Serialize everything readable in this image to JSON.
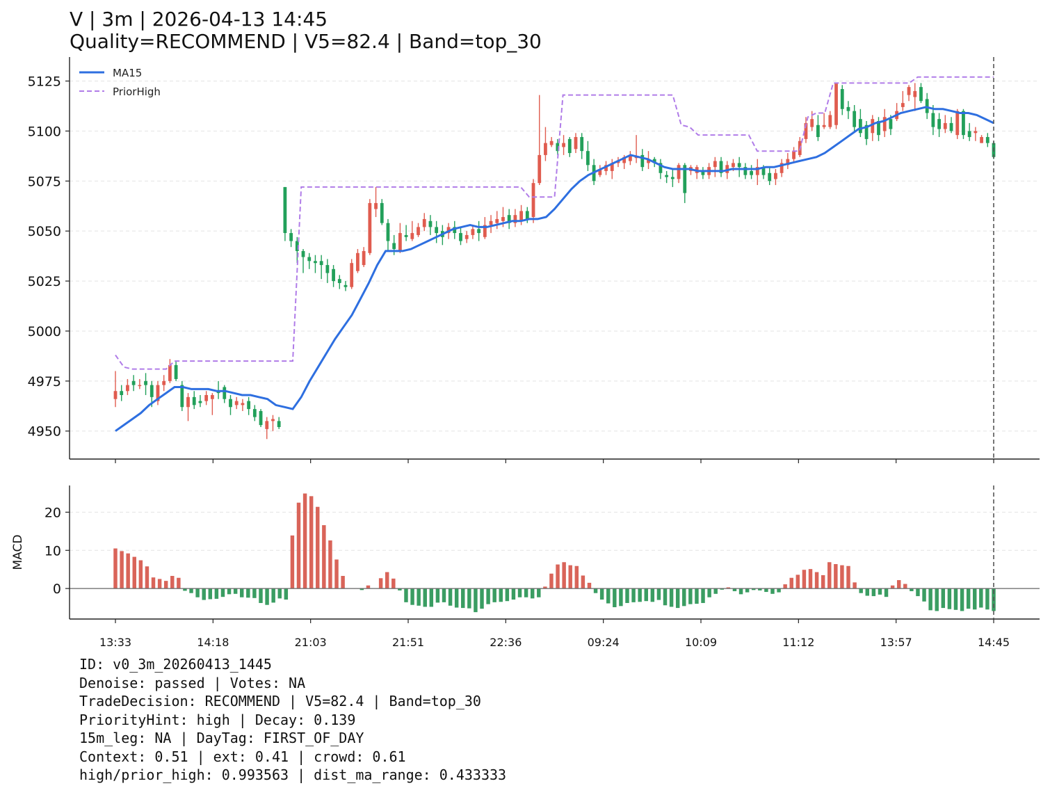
{
  "title": "V | 3m | 2026-04-13 14:45",
  "subtitle": "Quality=RECOMMEND | V5=82.4 | Band=top_30",
  "info_lines": [
    "ID: v0_3m_20260413_1445",
    "Denoise: passed | Votes: NA",
    "TradeDecision: RECOMMEND | V5=82.4 | Band=top_30",
    "PriorityHint: high | Decay: 0.139",
    "15m_leg: NA | DayTag: FIRST_OF_DAY",
    "Context: 0.51 | ext: 0.41 | crowd: 0.61",
    "high/prior_high: 0.993563 | dist_ma_range: 0.433333"
  ],
  "colors": {
    "up": "#e05c4f",
    "down": "#22a05a",
    "ma": "#2e6fe0",
    "prior_high": "#b07ce8",
    "hist_pos": "#d96459",
    "hist_neg": "#3a9d62",
    "marker": "#555555"
  },
  "chart_data": [
    {
      "type": "candlestick",
      "legend": [
        "MA15",
        "PriorHigh"
      ],
      "legend_position": "top-left",
      "grid": true,
      "ylim": [
        4936,
        5137
      ],
      "yticks": [
        4950,
        4975,
        5000,
        5025,
        5050,
        5075,
        5100,
        5125
      ],
      "ma15": [
        4950,
        4953,
        4956,
        4959,
        4963,
        4966,
        4969,
        4972,
        4972,
        4971,
        4971,
        4971,
        4970,
        4970,
        4969,
        4968,
        4968,
        4967,
        4966,
        4963,
        4962,
        4961,
        4967,
        4975,
        4982,
        4989,
        4996,
        5002,
        5008,
        5016,
        5024,
        5033,
        5040,
        5040,
        5040,
        5041,
        5043,
        5045,
        5047,
        5049,
        5051,
        5052,
        5053,
        5052,
        5052,
        5053,
        5054,
        5055,
        5055,
        5056,
        5056,
        5057,
        5061,
        5066,
        5071,
        5075,
        5078,
        5080,
        5082,
        5084,
        5086,
        5088,
        5087,
        5086,
        5084,
        5082,
        5081,
        5081,
        5081,
        5080,
        5080,
        5080,
        5080,
        5081,
        5081,
        5081,
        5081,
        5082,
        5082,
        5083,
        5084,
        5085,
        5086,
        5087,
        5089,
        5092,
        5095,
        5098,
        5101,
        5102,
        5104,
        5105,
        5107,
        5109,
        5110,
        5111,
        5112,
        5111,
        5111,
        5110,
        5109,
        5109,
        5108,
        5106,
        5104
      ],
      "prior_high": [
        4988,
        4982,
        4981,
        4981,
        4981,
        4981,
        4981,
        4985,
        4985,
        4985,
        4985,
        4985,
        4985,
        4985,
        4985,
        4985,
        4985,
        4985,
        4985,
        4985,
        4985,
        4985,
        5072,
        5072,
        5072,
        5072,
        5072,
        5072,
        5072,
        5072,
        5072,
        5072,
        5072,
        5072,
        5072,
        5072,
        5072,
        5072,
        5072,
        5072,
        5072,
        5072,
        5072,
        5072,
        5072,
        5072,
        5072,
        5072,
        5072,
        5067,
        5067,
        5067,
        5067,
        5118,
        5118,
        5118,
        5118,
        5118,
        5118,
        5118,
        5118,
        5118,
        5118,
        5118,
        5118,
        5118,
        5118,
        5103,
        5102,
        5098,
        5098,
        5098,
        5098,
        5098,
        5098,
        5098,
        5090,
        5090,
        5090,
        5090,
        5090,
        5090,
        5107,
        5109,
        5109,
        5124,
        5124,
        5124,
        5124,
        5124,
        5124,
        5124,
        5124,
        5124,
        5124,
        5127,
        5127,
        5127,
        5127,
        5127,
        5127,
        5127,
        5127,
        5127,
        5127
      ],
      "candles": [
        [
          4966,
          4970,
          4962,
          4980
        ],
        [
          4970,
          4968,
          4965,
          4973
        ],
        [
          4970,
          4973,
          4968,
          4976
        ],
        [
          4975,
          4973,
          4970,
          4978
        ],
        [
          4973,
          4973,
          4971,
          4976
        ],
        [
          4975,
          4973,
          4968,
          4979
        ],
        [
          4973,
          4967,
          4962,
          4975
        ],
        [
          4965,
          4973,
          4963,
          4975
        ],
        [
          4973,
          4975,
          4970,
          4978
        ],
        [
          4975,
          4983,
          4974,
          4986
        ],
        [
          4983,
          4976,
          4975,
          4985
        ],
        [
          4973,
          4962,
          4960,
          4975
        ],
        [
          4962,
          4967,
          4955,
          4969
        ],
        [
          4967,
          4963,
          4961,
          4970
        ],
        [
          4965,
          4964,
          4962,
          4968
        ],
        [
          4965,
          4968,
          4963,
          4970
        ],
        [
          4966,
          4968,
          4958,
          4969
        ],
        [
          4970,
          4969,
          4966,
          4975
        ],
        [
          4972,
          4966,
          4964,
          4973
        ],
        [
          4966,
          4962,
          4958,
          4968
        ],
        [
          4963,
          4965,
          4961,
          4967
        ],
        [
          4963,
          4964,
          4960,
          4966
        ],
        [
          4965,
          4961,
          4958,
          4967
        ],
        [
          4961,
          4957,
          4955,
          4963
        ],
        [
          4960,
          4953,
          4952,
          4961
        ],
        [
          4951,
          4955,
          4946,
          4957
        ],
        [
          4955,
          4956,
          4950,
          4958
        ],
        [
          4955,
          4952,
          4951,
          4957
        ],
        [
          5072,
          5049,
          5045,
          5072
        ],
        [
          5049,
          5045,
          5042,
          5051
        ],
        [
          5045,
          5040,
          5034,
          5047
        ],
        [
          5040,
          5037,
          5029,
          5041
        ],
        [
          5037,
          5035,
          5031,
          5039
        ],
        [
          5035,
          5034,
          5029,
          5038
        ],
        [
          5035,
          5033,
          5026,
          5038
        ],
        [
          5033,
          5029,
          5024,
          5036
        ],
        [
          5031,
          5025,
          5022,
          5033
        ],
        [
          5026,
          5024,
          5021,
          5028
        ],
        [
          5023,
          5022,
          5020,
          5025
        ],
        [
          5022,
          5034,
          5021,
          5036
        ],
        [
          5030,
          5039,
          5029,
          5041
        ],
        [
          5033,
          5040,
          5032,
          5042
        ],
        [
          5039,
          5064,
          5038,
          5066
        ],
        [
          5061,
          5064,
          5057,
          5072
        ],
        [
          5064,
          5054,
          5053,
          5066
        ],
        [
          5054,
          5045,
          5040,
          5056
        ],
        [
          5044,
          5041,
          5038,
          5048
        ],
        [
          5040,
          5049,
          5039,
          5054
        ],
        [
          5048,
          5047,
          5045,
          5053
        ],
        [
          5046,
          5049,
          5045,
          5055
        ],
        [
          5048,
          5052,
          5047,
          5054
        ],
        [
          5052,
          5056,
          5050,
          5059
        ],
        [
          5055,
          5052,
          5048,
          5058
        ],
        [
          5052,
          5049,
          5044,
          5055
        ],
        [
          5050,
          5047,
          5043,
          5053
        ],
        [
          5049,
          5052,
          5046,
          5054
        ],
        [
          5052,
          5049,
          5046,
          5055
        ],
        [
          5049,
          5045,
          5043,
          5052
        ],
        [
          5046,
          5048,
          5044,
          5050
        ],
        [
          5048,
          5051,
          5046,
          5053
        ],
        [
          5051,
          5049,
          5045,
          5055
        ],
        [
          5047,
          5053,
          5046,
          5057
        ],
        [
          5053,
          5055,
          5049,
          5058
        ],
        [
          5054,
          5056,
          5051,
          5060
        ],
        [
          5055,
          5057,
          5052,
          5062
        ],
        [
          5058,
          5054,
          5051,
          5061
        ],
        [
          5054,
          5058,
          5052,
          5061
        ],
        [
          5055,
          5060,
          5053,
          5063
        ],
        [
          5060,
          5056,
          5054,
          5062
        ],
        [
          5057,
          5074,
          5054,
          5076
        ],
        [
          5074,
          5088,
          5073,
          5118
        ],
        [
          5088,
          5094,
          5085,
          5102
        ],
        [
          5093,
          5095,
          5092,
          5097
        ],
        [
          5094,
          5090,
          5088,
          5096
        ],
        [
          5092,
          5094,
          5088,
          5098
        ],
        [
          5096,
          5089,
          5087,
          5097
        ],
        [
          5091,
          5097,
          5089,
          5099
        ],
        [
          5097,
          5090,
          5086,
          5099
        ],
        [
          5090,
          5083,
          5080,
          5095
        ],
        [
          5083,
          5075,
          5073,
          5086
        ],
        [
          5078,
          5081,
          5077,
          5083
        ],
        [
          5080,
          5083,
          5078,
          5085
        ],
        [
          5080,
          5084,
          5076,
          5086
        ],
        [
          5084,
          5085,
          5082,
          5087
        ],
        [
          5084,
          5087,
          5081,
          5088
        ],
        [
          5085,
          5088,
          5083,
          5090
        ],
        [
          5087,
          5087,
          5084,
          5098
        ],
        [
          5088,
          5082,
          5080,
          5091
        ],
        [
          5084,
          5086,
          5081,
          5090
        ],
        [
          5086,
          5084,
          5082,
          5087
        ],
        [
          5084,
          5079,
          5076,
          5086
        ],
        [
          5078,
          5077,
          5074,
          5080
        ],
        [
          5077,
          5076,
          5072,
          5081
        ],
        [
          5076,
          5083,
          5074,
          5084
        ],
        [
          5083,
          5069,
          5064,
          5084
        ],
        [
          5080,
          5082,
          5078,
          5083
        ],
        [
          5079,
          5082,
          5076,
          5083
        ],
        [
          5080,
          5078,
          5076,
          5082
        ],
        [
          5078,
          5082,
          5076,
          5084
        ],
        [
          5082,
          5085,
          5077,
          5087
        ],
        [
          5085,
          5079,
          5077,
          5087
        ],
        [
          5079,
          5083,
          5076,
          5085
        ],
        [
          5082,
          5084,
          5080,
          5086
        ],
        [
          5084,
          5082,
          5077,
          5087
        ],
        [
          5082,
          5078,
          5076,
          5084
        ],
        [
          5080,
          5078,
          5076,
          5083
        ],
        [
          5078,
          5082,
          5073,
          5086
        ],
        [
          5082,
          5078,
          5076,
          5083
        ],
        [
          5079,
          5075,
          5073,
          5082
        ],
        [
          5076,
          5079,
          5073,
          5081
        ],
        [
          5079,
          5084,
          5077,
          5086
        ],
        [
          5083,
          5086,
          5081,
          5089
        ],
        [
          5086,
          5090,
          5084,
          5092
        ],
        [
          5088,
          5095,
          5087,
          5097
        ],
        [
          5096,
          5104,
          5094,
          5107
        ],
        [
          5102,
          5106,
          5100,
          5110
        ],
        [
          5103,
          5097,
          5095,
          5108
        ],
        [
          5102,
          5103,
          5101,
          5109
        ],
        [
          5102,
          5108,
          5101,
          5110
        ],
        [
          5103,
          5124,
          5101,
          5124
        ],
        [
          5121,
          5111,
          5108,
          5123
        ],
        [
          5112,
          5110,
          5106,
          5115
        ],
        [
          5110,
          5102,
          5100,
          5113
        ],
        [
          5106,
          5099,
          5097,
          5111
        ],
        [
          5103,
          5096,
          5093,
          5105
        ],
        [
          5099,
          5106,
          5095,
          5108
        ],
        [
          5105,
          5098,
          5095,
          5107
        ],
        [
          5100,
          5107,
          5097,
          5111
        ],
        [
          5106,
          5101,
          5098,
          5108
        ],
        [
          5106,
          5110,
          5105,
          5114
        ],
        [
          5112,
          5114,
          5110,
          5120
        ],
        [
          5118,
          5122,
          5115,
          5123
        ],
        [
          5117,
          5120,
          5110,
          5124
        ],
        [
          5122,
          5115,
          5114,
          5124
        ],
        [
          5116,
          5109,
          5106,
          5119
        ],
        [
          5109,
          5102,
          5098,
          5113
        ],
        [
          5106,
          5101,
          5097,
          5109
        ],
        [
          5101,
          5104,
          5099,
          5108
        ],
        [
          5104,
          5100,
          5099,
          5107
        ],
        [
          5098,
          5110,
          5096,
          5111
        ],
        [
          5110,
          5098,
          5096,
          5111
        ],
        [
          5100,
          5097,
          5095,
          5104
        ],
        [
          5099,
          5100,
          5095,
          5102
        ],
        [
          5094,
          5097,
          5094,
          5098
        ],
        [
          5097,
          5094,
          5092,
          5099
        ],
        [
          5094,
          5087,
          5086,
          5095
        ]
      ]
    },
    {
      "type": "bar",
      "ylabel": "MACD",
      "ylim": [
        -8,
        27
      ],
      "yticks": [
        0,
        10,
        20
      ],
      "xticks": [
        "13:33",
        "14:18",
        "21:03",
        "21:51",
        "22:36",
        "09:24",
        "10:09",
        "11:12",
        "13:57",
        "14:45"
      ],
      "values": [
        10.5,
        9.8,
        9.2,
        8.3,
        7.4,
        5.8,
        2.9,
        2.5,
        2.0,
        3.3,
        2.8,
        -0.6,
        -1.2,
        -2.3,
        -3.0,
        -2.8,
        -2.7,
        -2.2,
        -1.5,
        -1.4,
        -2.3,
        -2.4,
        -2.5,
        -3.8,
        -4.3,
        -3.7,
        -2.6,
        -2.9,
        13.9,
        22.5,
        24.9,
        24.2,
        21.4,
        16.6,
        12.6,
        7.6,
        3.3,
        0,
        0,
        -0.4,
        0.8,
        0,
        2.7,
        4.3,
        2.6,
        -0.5,
        -3.6,
        -4.3,
        -4.5,
        -4.8,
        -4.8,
        -3.7,
        -3.6,
        -4.5,
        -5.0,
        -5.1,
        -5.2,
        -6.2,
        -5.3,
        -4.1,
        -3.6,
        -3.5,
        -3.3,
        -2.9,
        -2.3,
        -2.3,
        -2.6,
        -2.3,
        0.5,
        3.9,
        6.3,
        6.9,
        6.1,
        5.9,
        3.4,
        1.5,
        -1.2,
        -2.9,
        -3.9,
        -4.9,
        -4.6,
        -3.8,
        -3.6,
        -3.5,
        -3.3,
        -3.5,
        -3.0,
        -4.4,
        -4.8,
        -5.1,
        -4.6,
        -4.1,
        -4.0,
        -3.8,
        -2.3,
        -1.4,
        -0.3,
        0.3,
        -0.7,
        -1.5,
        -1.0,
        -0.4,
        -0.5,
        -0.9,
        -1.4,
        -1.0,
        1.1,
        2.8,
        3.6,
        4.9,
        5.1,
        4.3,
        3.5,
        6.9,
        6.4,
        6.1,
        5.9,
        1.6,
        -1.2,
        -1.9,
        -2.0,
        -1.6,
        -2.2,
        0.8,
        2.2,
        1.2,
        -0.7,
        -2.0,
        -3.4,
        -5.7,
        -5.9,
        -5.1,
        -5.4,
        -5.6,
        -5.9,
        -5.3,
        -5.5,
        -5.0,
        -5.5,
        -5.9
      ]
    }
  ]
}
